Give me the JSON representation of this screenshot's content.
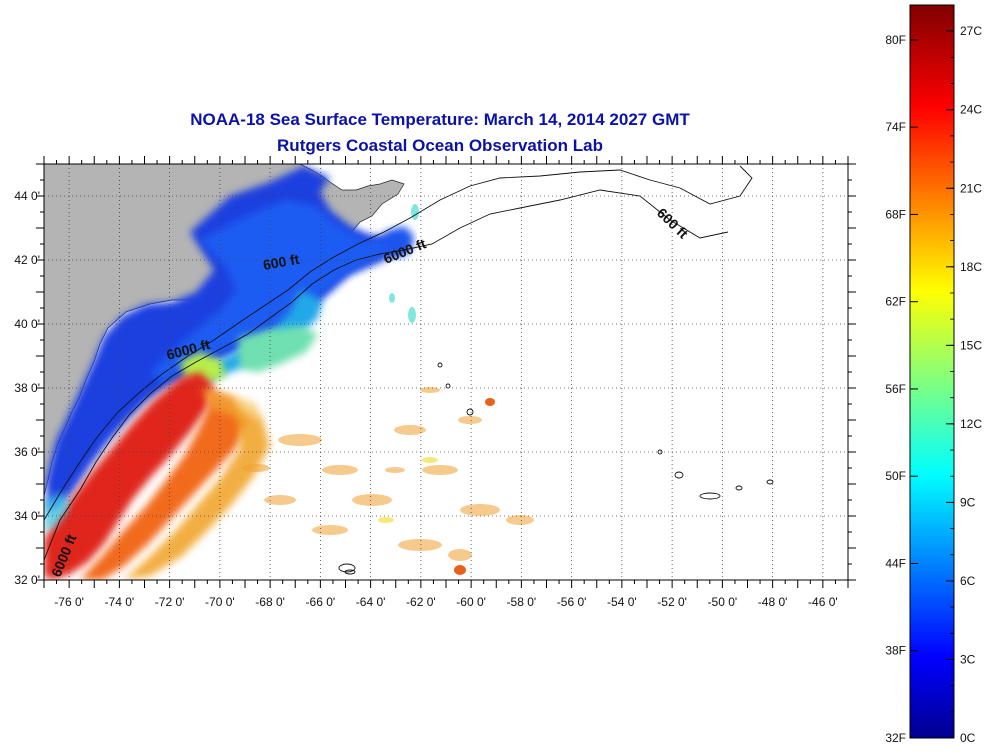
{
  "title": "NOAA-18 Sea Surface Temperature:  March 14, 2014 2027 GMT",
  "subtitle": "Rutgers Coastal Ocean Observation Lab",
  "map": {
    "lon_range": [
      -77,
      -45
    ],
    "lat_range": [
      32,
      45
    ],
    "lon_ticks": [
      -76,
      -74,
      -72,
      -70,
      -68,
      -66,
      -64,
      -62,
      -60,
      -58,
      -56,
      -54,
      -52,
      -50,
      -48,
      -46
    ],
    "lat_ticks": [
      32,
      34,
      36,
      38,
      40,
      42,
      44
    ],
    "lon_tick_labels": [
      "-76 0'",
      "-74 0'",
      "-72 0'",
      "-70 0'",
      "-68 0'",
      "-66 0'",
      "-64 0'",
      "-62 0'",
      "-60 0'",
      "-58 0'",
      "-56 0'",
      "-54 0'",
      "-52 0'",
      "-50 0'",
      "-48 0'",
      "-46 0'"
    ],
    "lat_tick_labels": [
      "32 0'",
      "34 0'",
      "36 0'",
      "38 0'",
      "40 0'",
      "42 0'",
      "44 0'"
    ],
    "grid": true,
    "land_color": "#b4b4b4",
    "contour_labels": [
      "600 ft",
      "6000 ft",
      "6000 ft",
      "600 ft",
      "6000 ft"
    ]
  },
  "colorbar": {
    "range_c": [
      0,
      28
    ],
    "celsius_labels": [
      "0C",
      "3C",
      "6C",
      "9C",
      "12C",
      "15C",
      "18C",
      "21C",
      "24C",
      "27C"
    ],
    "celsius_values": [
      0,
      3,
      6,
      9,
      12,
      15,
      18,
      21,
      24,
      27
    ],
    "fahrenheit_labels": [
      "32F",
      "38F",
      "44F",
      "50F",
      "56F",
      "62F",
      "68F",
      "74F",
      "80F"
    ],
    "fahrenheit_values": [
      32,
      38,
      44,
      50,
      56,
      62,
      68,
      74,
      80
    ],
    "colormap": "jet"
  }
}
